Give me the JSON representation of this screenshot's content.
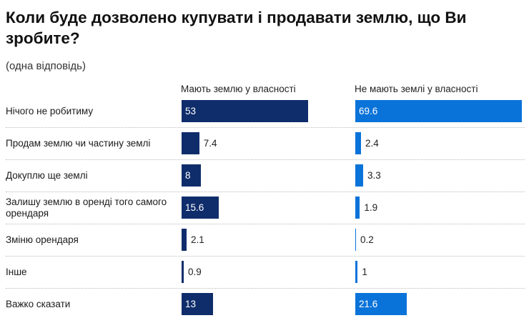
{
  "title": "Коли буде дозволено купувати і продавати землю, що Ви зробите?",
  "subtitle": "(одна відповідь)",
  "chart_data": {
    "type": "bar",
    "categories": [
      "Нічого не робитиму",
      "Продам землю чи частину землі",
      "Докуплю ще землі",
      "Залишу землю в оренді того самого орендаря",
      "Зміню орендаря",
      "Інше",
      "Важко сказати"
    ],
    "series": [
      {
        "name": "Мають землю у власності",
        "color": "#0f2d6b",
        "values": [
          53,
          7.4,
          8,
          15.6,
          2.1,
          0.9,
          13
        ]
      },
      {
        "name": "Не мають землі у власності",
        "color": "#0a73d9",
        "values": [
          69.6,
          2.4,
          3.3,
          1.9,
          0.2,
          1,
          21.6
        ]
      }
    ]
  }
}
